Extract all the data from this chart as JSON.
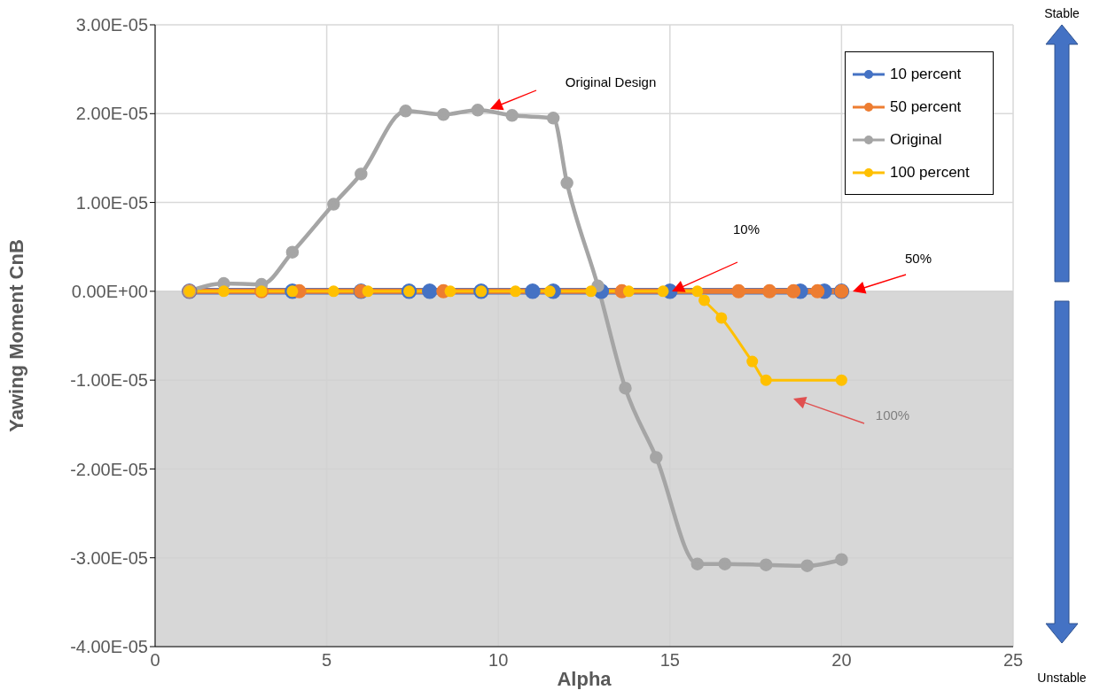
{
  "chart_data": {
    "type": "line",
    "xlabel": "Alpha",
    "ylabel": "Yawing Moment CnB",
    "xlim": [
      0,
      25
    ],
    "xticks": [
      0,
      5,
      10,
      15,
      20,
      25
    ],
    "ylim": [
      -4e-05,
      3e-05
    ],
    "yticks": [
      {
        "value": -4e-05,
        "label": "-4.00E-05"
      },
      {
        "value": -3e-05,
        "label": "-3.00E-05"
      },
      {
        "value": -2e-05,
        "label": "-2.00E-05"
      },
      {
        "value": -1e-05,
        "label": "-1.00E-05"
      },
      {
        "value": 0,
        "label": "0.00E+00"
      },
      {
        "value": 1e-05,
        "label": "1.00E-05"
      },
      {
        "value": 2e-05,
        "label": "2.00E-05"
      },
      {
        "value": 3e-05,
        "label": "3.00E-05"
      }
    ],
    "grid": true,
    "legend": "top right",
    "marker": "circle",
    "line_style": "solid",
    "bands": [
      {
        "axis": "y",
        "from": -4e-05,
        "to": 0,
        "color": "#d0d0d0"
      }
    ],
    "series": [
      {
        "name": "10 percent",
        "color": "#4472c4",
        "x": [
          1.0,
          4.0,
          6.0,
          7.4,
          8.0,
          9.5,
          11.0,
          11.6,
          13.0,
          15.0,
          18.8,
          19.5,
          20.0
        ],
        "values": [
          0,
          0,
          0,
          0,
          0,
          0,
          0,
          0,
          0,
          0,
          0,
          0,
          0
        ]
      },
      {
        "name": "50 percent",
        "color": "#ed7d31",
        "x": [
          1.0,
          3.1,
          4.2,
          6.0,
          8.4,
          13.6,
          17.0,
          17.9,
          18.6,
          19.3,
          20.0
        ],
        "values": [
          0,
          0,
          0,
          0,
          0,
          0,
          0,
          0,
          0,
          0,
          0
        ]
      },
      {
        "name": "Original",
        "color": "#a5a5a5",
        "x": [
          1.0,
          2.0,
          3.1,
          4.0,
          5.2,
          6.0,
          7.3,
          8.4,
          9.4,
          10.4,
          11.6,
          12.0,
          12.9,
          13.7,
          14.6,
          15.8,
          16.6,
          17.8,
          19.0,
          20.0
        ],
        "values": [
          0,
          8.8e-07,
          7.8e-07,
          4.4e-06,
          9.8e-06,
          1.32e-05,
          2.03e-05,
          1.99e-05,
          2.04e-05,
          1.98e-05,
          1.95e-05,
          1.22e-05,
          6e-07,
          -1.09e-05,
          -1.87e-05,
          -3.07e-05,
          -3.07e-05,
          -3.08e-05,
          -3.09e-05,
          -3.02e-05
        ]
      },
      {
        "name": "100 percent",
        "color": "#ffc000",
        "x": [
          1.0,
          2.0,
          3.1,
          4.0,
          5.2,
          6.2,
          7.4,
          8.6,
          9.5,
          10.5,
          11.5,
          12.7,
          13.8,
          14.8,
          15.8,
          16.0,
          16.5,
          17.4,
          17.8,
          20.0
        ],
        "values": [
          0,
          0,
          0,
          0,
          0,
          0,
          0,
          0,
          0,
          0,
          0,
          0,
          0,
          0,
          0,
          -1e-06,
          -3e-06,
          -7.9e-06,
          -1e-05,
          -1e-05
        ]
      }
    ],
    "annotations": [
      "Original Design",
      "10%",
      "50%",
      "100%",
      "Stable",
      "Unstable"
    ]
  }
}
